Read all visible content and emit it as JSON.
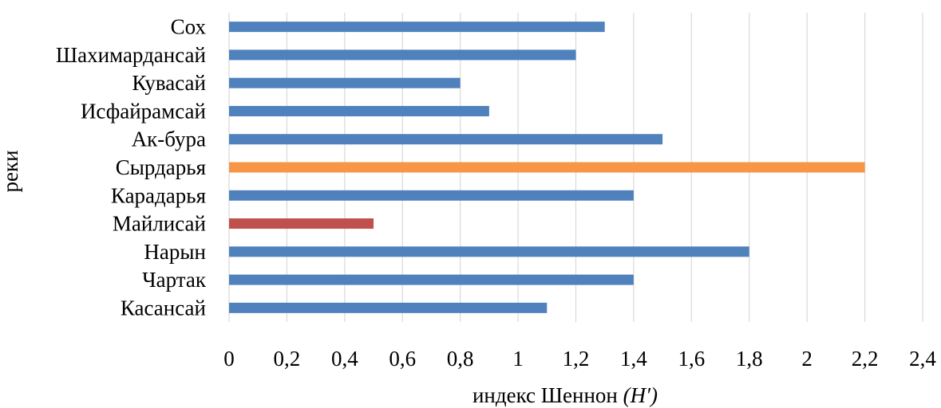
{
  "chart_data": {
    "type": "bar",
    "orientation": "horizontal",
    "categories": [
      "Сох",
      "Шахимардансай",
      "Кувасай",
      "Исфайрамсай",
      "Ак-бура",
      "Сырдарья",
      "Карадарья",
      "Майлисай",
      "Нарын",
      "Чартак",
      "Касансай"
    ],
    "values": [
      1.3,
      1.2,
      0.8,
      0.9,
      1.5,
      2.2,
      1.4,
      0.5,
      1.8,
      1.4,
      1.1
    ],
    "bar_colors": [
      "#4f81bd",
      "#4f81bd",
      "#4f81bd",
      "#4f81bd",
      "#4f81bd",
      "#f79646",
      "#4f81bd",
      "#c0504d",
      "#4f81bd",
      "#4f81bd",
      "#4f81bd"
    ],
    "xlim": [
      0,
      2.4
    ],
    "xticks": [
      "0",
      "0,2",
      "0,4",
      "0,6",
      "0,8",
      "1",
      "1,2",
      "1,4",
      "1,6",
      "1,8",
      "2",
      "2,2",
      "2,4"
    ],
    "xlabel_main": "индекс Шеннон ",
    "xlabel_symbol": "(H′)",
    "ylabel": "реки",
    "grid": true,
    "legend": "none"
  }
}
